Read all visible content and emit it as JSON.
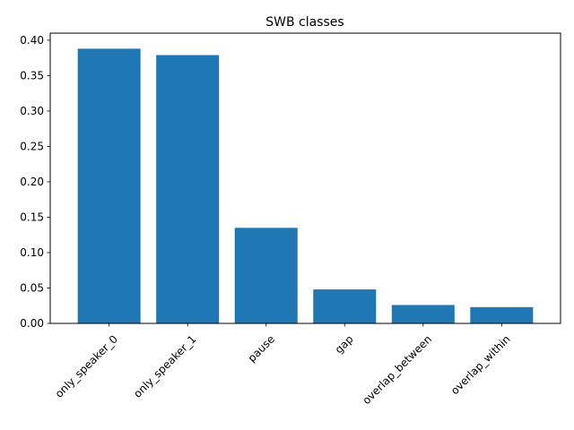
{
  "chart_data": {
    "type": "bar",
    "title": "SWB classes",
    "xlabel": "",
    "ylabel": "",
    "categories": [
      "only_speaker_0",
      "only_speaker_1",
      "pause",
      "gap",
      "overlap_between",
      "overlap_within"
    ],
    "values": [
      0.388,
      0.379,
      0.135,
      0.048,
      0.026,
      0.023
    ],
    "ylim": [
      0,
      0.41
    ],
    "yticks": [
      "0.00",
      "0.05",
      "0.10",
      "0.15",
      "0.20",
      "0.25",
      "0.30",
      "0.35",
      "0.40"
    ],
    "bar_color": "#1f77b4",
    "grid": false,
    "legend": "none"
  }
}
